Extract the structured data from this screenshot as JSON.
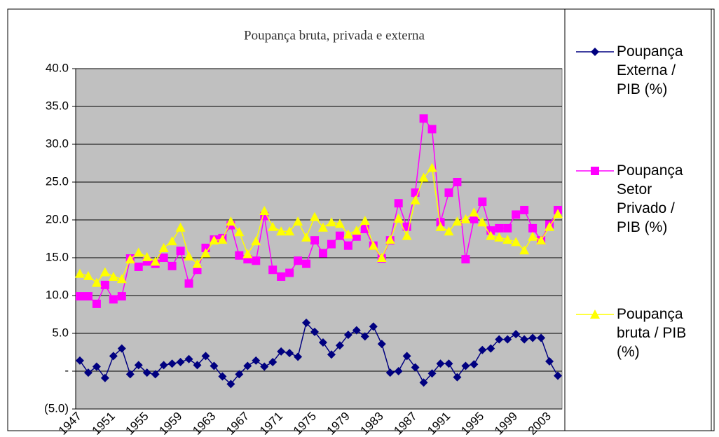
{
  "chart_data": {
    "type": "line",
    "title": "Poupança bruta, privada e externa",
    "categories": [
      1947,
      null,
      null,
      null,
      1951,
      null,
      null,
      null,
      1955,
      null,
      null,
      null,
      1959,
      null,
      null,
      null,
      1963,
      null,
      null,
      null,
      1967,
      null,
      null,
      null,
      1971,
      null,
      null,
      null,
      1975,
      null,
      null,
      null,
      1979,
      null,
      null,
      null,
      1983,
      null,
      null,
      null,
      1987,
      null,
      null,
      null,
      1991,
      null,
      null,
      null,
      1995,
      null,
      null,
      null,
      1999,
      null,
      null,
      null,
      2003,
      null
    ],
    "series": [
      {
        "name": "Poupança Externa / PIB (%)",
        "color": "#000080",
        "marker": "diamond",
        "values": [
          1.4,
          -0.2,
          0.6,
          -0.9,
          2.0,
          3.0,
          -0.4,
          0.8,
          -0.2,
          -0.4,
          0.8,
          1.0,
          1.2,
          1.6,
          0.8,
          2.0,
          0.7,
          -0.7,
          -1.7,
          -0.4,
          0.7,
          1.4,
          0.6,
          1.2,
          2.6,
          2.4,
          1.9,
          6.4,
          5.2,
          3.8,
          2.2,
          3.4,
          4.8,
          5.4,
          4.6,
          5.9,
          3.6,
          -0.2,
          0,
          2.0,
          0.5,
          -1.5,
          -0.3,
          1.0,
          1.0,
          -0.8,
          0.7,
          0.9,
          2.8,
          3.0,
          4.2,
          4.2,
          4.9,
          4.2,
          4.4,
          4.4,
          1.3,
          -0.6
        ]
      },
      {
        "name": "Poupança Setor Privado / PIB (%)",
        "color": "#ff00ff",
        "marker": "square",
        "values": [
          9.9,
          9.9,
          8.9,
          11.4,
          9.5,
          9.9,
          14.9,
          13.8,
          14.5,
          14.2,
          15.0,
          13.9,
          15.9,
          11.6,
          13.4,
          16.3,
          17.4,
          17.6,
          19.3,
          15.3,
          14.8,
          14.6,
          20.5,
          13.4,
          12.5,
          13.0,
          14.6,
          14.2,
          17.3,
          15.6,
          16.8,
          17.9,
          16.6,
          17.8,
          18.8,
          16.6,
          14.9,
          17.3,
          22.2,
          19.1,
          23.6,
          33.4,
          32.0,
          19.7,
          23.6,
          25.0,
          14.8,
          20.1,
          22.4,
          18.6,
          18.9,
          18.9,
          20.7,
          21.3,
          18.9,
          17.3,
          19.4,
          21.3
        ]
      },
      {
        "name": "Poupança bruta / PIB (%)",
        "color": "#ffff00",
        "marker": "triangle",
        "values": [
          12.9,
          12.6,
          11.7,
          13.1,
          12.5,
          12.2,
          14.8,
          15.7,
          15.1,
          14.5,
          16.3,
          17.2,
          19.0,
          15.2,
          14.2,
          15.6,
          17.3,
          17.4,
          19.8,
          18.4,
          15.5,
          17.2,
          21.2,
          19.1,
          18.5,
          18.5,
          19.8,
          17.7,
          20.4,
          19.0,
          19.7,
          19.5,
          18.1,
          18.6,
          19.9,
          16.6,
          15.0,
          17.4,
          20.2,
          17.9,
          22.6,
          25.6,
          26.9,
          19.1,
          18.5,
          19.8,
          20.1,
          21.0,
          19.7,
          17.9,
          17.7,
          17.4,
          17.1,
          16.0,
          17.8,
          17.3,
          19.1,
          20.8
        ]
      }
    ],
    "ylim": [
      -5,
      40
    ],
    "yticks": [
      {
        "value": -5,
        "label": "(5.0)"
      },
      {
        "value": 0,
        "label": "-"
      },
      {
        "value": 5,
        "label": "5.0"
      },
      {
        "value": 10,
        "label": "10.0"
      },
      {
        "value": 15,
        "label": "15.0"
      },
      {
        "value": 20,
        "label": "20.0"
      },
      {
        "value": 25,
        "label": "25.0"
      },
      {
        "value": 30,
        "label": "30.0"
      },
      {
        "value": 35,
        "label": "35.0"
      },
      {
        "value": 40,
        "label": "40.0"
      }
    ],
    "grid": true,
    "plot_background": "#c0c0c0",
    "legend": "right"
  }
}
